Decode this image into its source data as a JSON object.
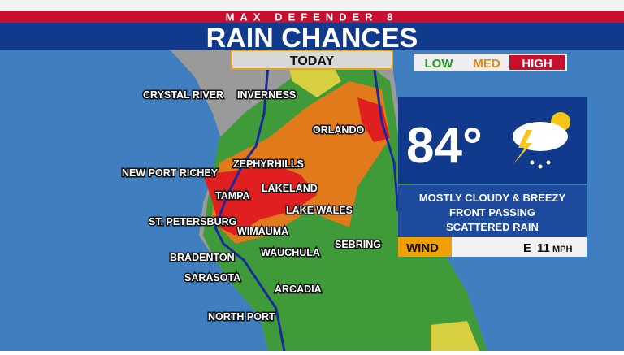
{
  "header": {
    "brand": "MAX DEFENDER 8",
    "title": "RAIN CHANCES"
  },
  "period": "TODAY",
  "legend": [
    "LOW",
    "MED",
    "HIGH"
  ],
  "cities": [
    "CRYSTAL RIVER",
    "INVERNESS",
    "ORLANDO",
    "ZEPHYRHILLS",
    "NEW PORT RICHEY",
    "TAMPA",
    "LAKELAND",
    "LAKE WALES",
    "ST. PETERSBURG",
    "WIMAUMA",
    "SEBRING",
    "BRADENTON",
    "WAUCHULA",
    "SARASOTA",
    "ARCADIA",
    "NORTH PORT"
  ],
  "forecast": {
    "temperature": "84°",
    "conditions": [
      "MOSTLY CLOUDY & BREEZY",
      "FRONT PASSING",
      "SCATTERED RAIN"
    ],
    "wind_label": "WIND",
    "wind_direction": "E",
    "wind_speed": "11",
    "wind_unit": "MPH"
  }
}
